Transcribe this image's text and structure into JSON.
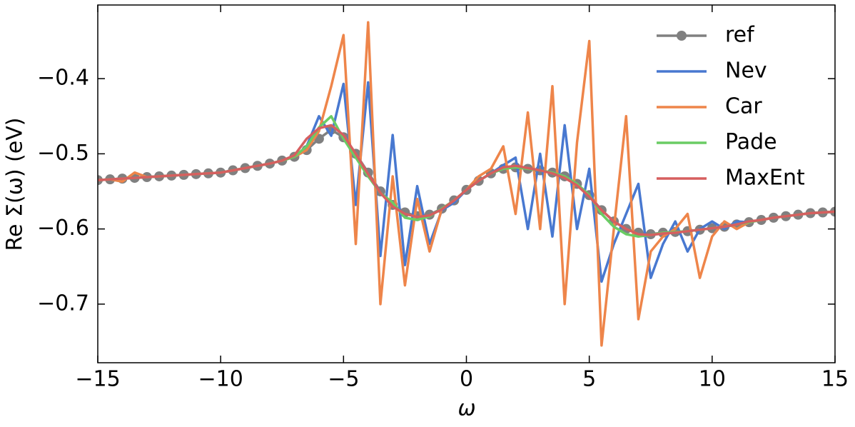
{
  "chart_data": {
    "type": "line",
    "xlabel": "ω",
    "ylabel": "Re Σ(ω) (eV)",
    "xlim": [
      -15,
      15
    ],
    "ylim": [
      -0.778,
      -0.302
    ],
    "xticks": [
      {
        "value": -15,
        "label": "−15"
      },
      {
        "value": -10,
        "label": "−10"
      },
      {
        "value": -5,
        "label": "−5"
      },
      0,
      5,
      10,
      15
    ],
    "yticks": [
      {
        "value": -0.7,
        "label": "−0.7"
      },
      {
        "value": -0.6,
        "label": "−0.6"
      },
      {
        "value": -0.5,
        "label": "−0.5"
      },
      {
        "value": -0.4,
        "label": "−0.4"
      }
    ],
    "legend": "upper right",
    "x": [
      -15,
      -14.5,
      -14,
      -13.5,
      -13,
      -12.5,
      -12,
      -11.5,
      -11,
      -10.5,
      -10,
      -9.5,
      -9,
      -8.5,
      -8,
      -7.5,
      -7,
      -6.5,
      -6,
      -5.5,
      -5,
      -4.5,
      -4,
      -3.5,
      -3,
      -2.5,
      -2,
      -1.5,
      -1,
      -0.5,
      0,
      0.5,
      1,
      1.5,
      2,
      2.5,
      3,
      3.5,
      4,
      4.5,
      5,
      5.5,
      6,
      6.5,
      7,
      7.5,
      8,
      8.5,
      9,
      9.5,
      10,
      10.5,
      11,
      11.5,
      12,
      12.5,
      13,
      13.5,
      14,
      14.5,
      15
    ],
    "series": [
      {
        "name": "ref",
        "color": "#808080",
        "marker": "o",
        "values": [
          -0.535,
          -0.534,
          -0.533,
          -0.532,
          -0.531,
          -0.53,
          -0.529,
          -0.528,
          -0.527,
          -0.526,
          -0.525,
          -0.522,
          -0.519,
          -0.516,
          -0.513,
          -0.509,
          -0.504,
          -0.495,
          -0.48,
          -0.468,
          -0.478,
          -0.5,
          -0.525,
          -0.55,
          -0.568,
          -0.578,
          -0.583,
          -0.581,
          -0.573,
          -0.562,
          -0.548,
          -0.536,
          -0.526,
          -0.52,
          -0.518,
          -0.52,
          -0.522,
          -0.525,
          -0.53,
          -0.54,
          -0.555,
          -0.575,
          -0.59,
          -0.6,
          -0.605,
          -0.607,
          -0.605,
          -0.604,
          -0.603,
          -0.601,
          -0.599,
          -0.597,
          -0.594,
          -0.591,
          -0.588,
          -0.585,
          -0.583,
          -0.581,
          -0.579,
          -0.578,
          -0.577
        ]
      },
      {
        "name": "Nev",
        "color": "#4878d0",
        "values": [
          -0.535,
          -0.534,
          -0.533,
          -0.532,
          -0.531,
          -0.53,
          -0.529,
          -0.528,
          -0.527,
          -0.526,
          -0.525,
          -0.522,
          -0.519,
          -0.516,
          -0.513,
          -0.509,
          -0.504,
          -0.49,
          -0.45,
          -0.476,
          -0.407,
          -0.568,
          -0.405,
          -0.636,
          -0.475,
          -0.648,
          -0.543,
          -0.62,
          -0.575,
          -0.565,
          -0.548,
          -0.536,
          -0.526,
          -0.515,
          -0.505,
          -0.6,
          -0.5,
          -0.61,
          -0.462,
          -0.6,
          -0.52,
          -0.67,
          -0.62,
          -0.58,
          -0.54,
          -0.665,
          -0.62,
          -0.59,
          -0.63,
          -0.6,
          -0.59,
          -0.6,
          -0.59,
          -0.591,
          -0.588,
          -0.585,
          -0.583,
          -0.581,
          -0.579,
          -0.578,
          -0.577
        ]
      },
      {
        "name": "Car",
        "color": "#ee854a",
        "values": [
          -0.535,
          -0.534,
          -0.537,
          -0.525,
          -0.531,
          -0.53,
          -0.529,
          -0.528,
          -0.527,
          -0.526,
          -0.525,
          -0.522,
          -0.519,
          -0.516,
          -0.513,
          -0.509,
          -0.504,
          -0.495,
          -0.47,
          -0.41,
          -0.342,
          -0.62,
          -0.325,
          -0.7,
          -0.53,
          -0.675,
          -0.56,
          -0.63,
          -0.573,
          -0.562,
          -0.548,
          -0.53,
          -0.52,
          -0.49,
          -0.58,
          -0.445,
          -0.6,
          -0.41,
          -0.7,
          -0.485,
          -0.35,
          -0.755,
          -0.6,
          -0.45,
          -0.72,
          -0.63,
          -0.61,
          -0.6,
          -0.58,
          -0.665,
          -0.61,
          -0.59,
          -0.6,
          -0.591,
          -0.588,
          -0.585,
          -0.583,
          -0.581,
          -0.579,
          -0.578,
          -0.577
        ]
      },
      {
        "name": "Pade",
        "color": "#6acc64",
        "values": [
          -0.535,
          -0.534,
          -0.533,
          -0.532,
          -0.531,
          -0.53,
          -0.529,
          -0.528,
          -0.527,
          -0.526,
          -0.525,
          -0.522,
          -0.519,
          -0.516,
          -0.513,
          -0.509,
          -0.504,
          -0.49,
          -0.465,
          -0.45,
          -0.48,
          -0.505,
          -0.53,
          -0.552,
          -0.565,
          -0.585,
          -0.588,
          -0.583,
          -0.573,
          -0.562,
          -0.548,
          -0.536,
          -0.526,
          -0.52,
          -0.518,
          -0.52,
          -0.522,
          -0.525,
          -0.53,
          -0.54,
          -0.555,
          -0.58,
          -0.597,
          -0.607,
          -0.61,
          -0.608,
          -0.605,
          -0.604,
          -0.603,
          -0.601,
          -0.599,
          -0.597,
          -0.594,
          -0.591,
          -0.588,
          -0.585,
          -0.583,
          -0.581,
          -0.579,
          -0.578,
          -0.577
        ]
      },
      {
        "name": "MaxEnt",
        "color": "#d65f5f",
        "values": [
          -0.535,
          -0.534,
          -0.533,
          -0.532,
          -0.531,
          -0.53,
          -0.529,
          -0.528,
          -0.527,
          -0.526,
          -0.525,
          -0.522,
          -0.519,
          -0.516,
          -0.513,
          -0.509,
          -0.502,
          -0.48,
          -0.466,
          -0.462,
          -0.475,
          -0.5,
          -0.527,
          -0.552,
          -0.57,
          -0.58,
          -0.584,
          -0.582,
          -0.574,
          -0.562,
          -0.548,
          -0.536,
          -0.526,
          -0.518,
          -0.516,
          -0.519,
          -0.522,
          -0.526,
          -0.532,
          -0.542,
          -0.557,
          -0.575,
          -0.59,
          -0.6,
          -0.607,
          -0.608,
          -0.606,
          -0.605,
          -0.603,
          -0.601,
          -0.599,
          -0.597,
          -0.594,
          -0.59,
          -0.588,
          -0.585,
          -0.583,
          -0.581,
          -0.579,
          -0.578,
          -0.577
        ]
      }
    ]
  }
}
